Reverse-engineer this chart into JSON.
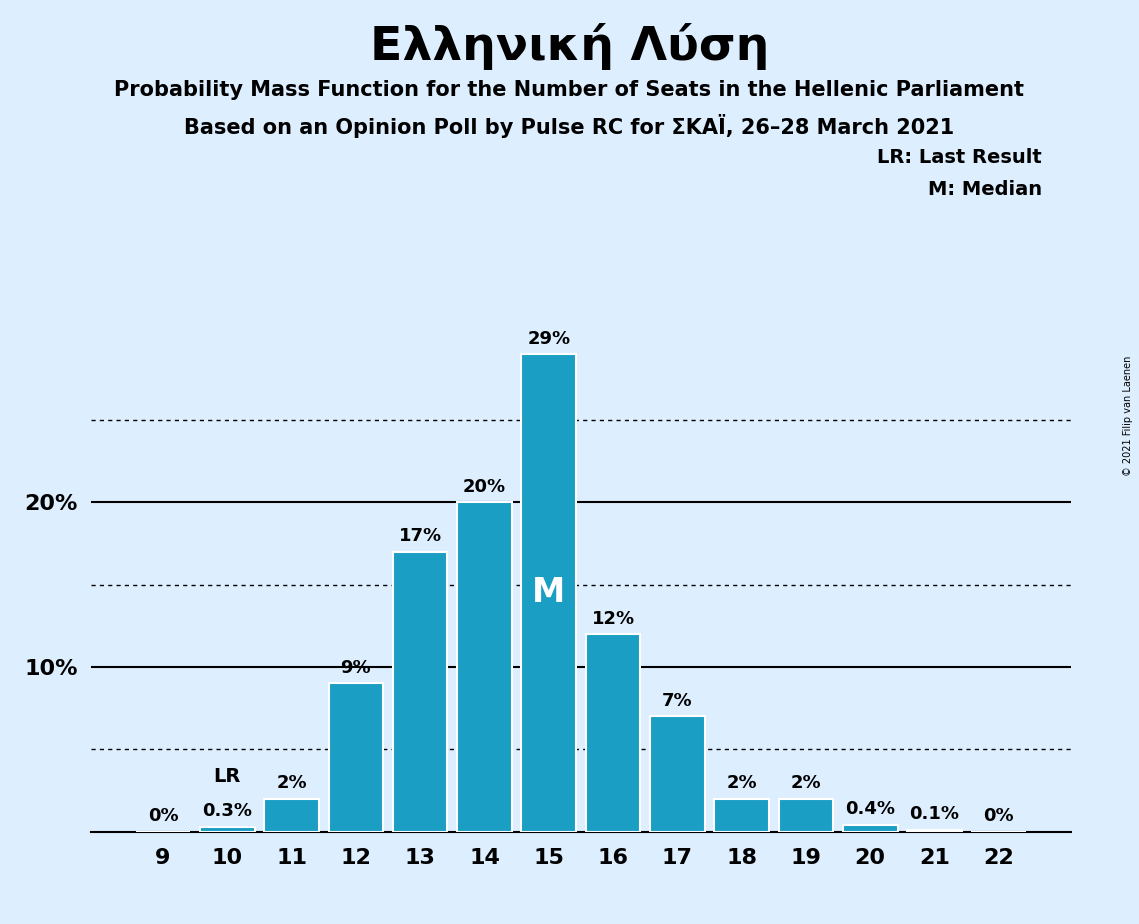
{
  "title": "Ελληνική Λύση",
  "subtitle1": "Probability Mass Function for the Number of Seats in the Hellenic Parliament",
  "subtitle2": "Based on an Opinion Poll by Pulse RC for ΣΚΑΪ, 26–28 March 2021",
  "copyright": "© 2021 Filip van Laenen",
  "categories": [
    9,
    10,
    11,
    12,
    13,
    14,
    15,
    16,
    17,
    18,
    19,
    20,
    21,
    22
  ],
  "values": [
    0.0,
    0.3,
    2.0,
    9.0,
    17.0,
    20.0,
    29.0,
    12.0,
    7.0,
    2.0,
    2.0,
    0.4,
    0.1,
    0.0
  ],
  "labels": [
    "0%",
    "0.3%",
    "2%",
    "9%",
    "17%",
    "20%",
    "29%",
    "12%",
    "7%",
    "2%",
    "2%",
    "0.4%",
    "0.1%",
    "0%"
  ],
  "bar_color": "#1b9ec4",
  "background_color": "#ddeeff",
  "bar_edge_color": "#ffffff",
  "median_bar_index": 6,
  "median_label": "M",
  "lr_bar_index": 1,
  "lr_label": "LR",
  "dotted_lines": [
    5.0,
    15.0,
    25.0
  ],
  "solid_lines": [
    10.0,
    20.0
  ],
  "ymax": 32,
  "legend_text1": "LR: Last Result",
  "legend_text2": "M: Median",
  "title_fontsize": 34,
  "subtitle_fontsize": 15,
  "label_fontsize": 13,
  "tick_fontsize": 16,
  "legend_fontsize": 14
}
